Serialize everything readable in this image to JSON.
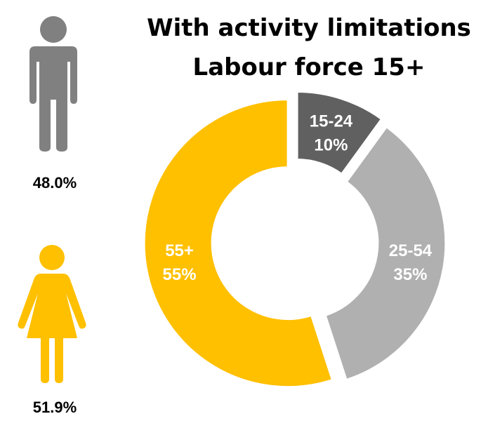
{
  "title_lines": [
    "With activity limitations",
    "Labour force 15+"
  ],
  "sex_shares": {
    "men": {
      "icon": "man-icon",
      "value": "48.0%",
      "color": "#808080"
    },
    "women": {
      "icon": "woman-icon",
      "value": "51.9%",
      "color": "#FFC000"
    }
  },
  "chart_data": {
    "type": "pie",
    "title": "With activity limitations\nLabour force 15+",
    "slices": [
      {
        "label": "15-24",
        "value": 10,
        "display": "10%",
        "color": "#606060"
      },
      {
        "label": "25-54",
        "value": 35,
        "display": "35%",
        "color": "#B0B0B0"
      },
      {
        "label": "55+",
        "value": 55,
        "display": "55%",
        "color": "#FFC000"
      }
    ]
  }
}
